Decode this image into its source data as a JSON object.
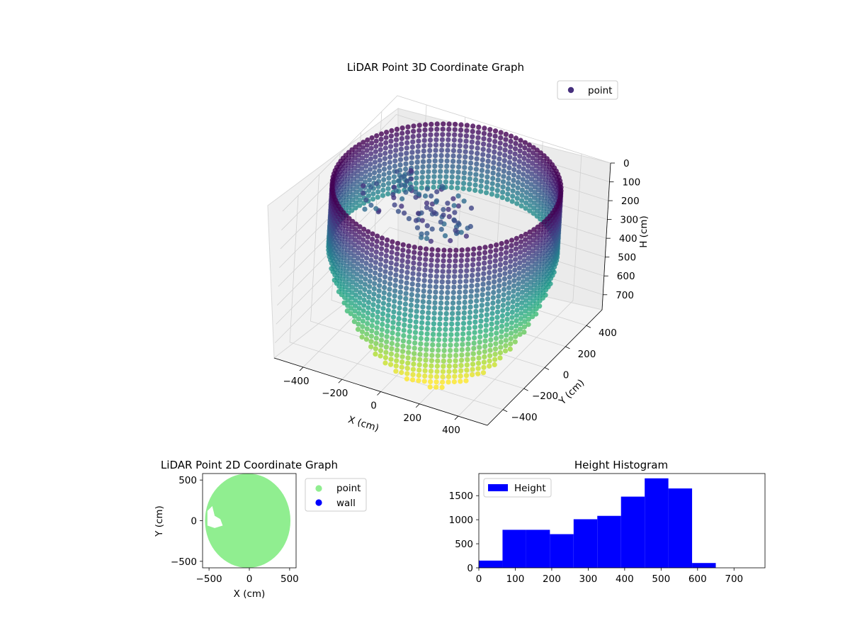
{
  "chart_data": [
    {
      "type": "scatter3d",
      "title": "LiDAR Point 3D Coordinate Graph",
      "xlabel": "X (cm)",
      "ylabel": "Y (cm)",
      "zlabel": "H (cm)",
      "x_ticks": [
        -400,
        -200,
        0,
        200,
        400
      ],
      "y_ticks": [
        -400,
        -200,
        0,
        200,
        400
      ],
      "z_ticks": [
        0,
        100,
        200,
        300,
        400,
        500,
        600,
        700
      ],
      "xlim": [
        -550,
        550
      ],
      "ylim": [
        -550,
        550
      ],
      "zlim": [
        0,
        780
      ],
      "z_inverted": true,
      "colormap": "viridis",
      "legend": {
        "entries": [
          "point"
        ],
        "placement": "top-right"
      },
      "ring_radius": 520,
      "features": "cylindrical wall of points (radius ~520 cm) spanning heights ~0-700 cm, deepest toward -X/-Y; interior cluster of objects near x -300 to 100"
    },
    {
      "type": "scatter",
      "title": "LiDAR Point 2D Coordinate Graph",
      "xlabel": "X (cm)",
      "ylabel": "Y (cm)",
      "x_ticks": [
        -500,
        0,
        500
      ],
      "y_ticks": [
        -500,
        0,
        500
      ],
      "xlim": [
        -580,
        580
      ],
      "ylim": [
        -580,
        580
      ],
      "legend": {
        "entries": [
          "point",
          "wall"
        ],
        "placement": "outside right"
      },
      "series": [
        {
          "name": "point",
          "color": "#90ee90",
          "shape": "filled disc radius ~540 cm with small gaps near (-450, 0)"
        },
        {
          "name": "wall",
          "color": "#0000ff"
        }
      ]
    },
    {
      "type": "bar",
      "title": "Height Histogram",
      "legend": {
        "entries": [
          "Height"
        ],
        "placement": "top-left"
      },
      "color": "#0000ff",
      "x_ticks": [
        0,
        100,
        200,
        300,
        400,
        500,
        600,
        700
      ],
      "y_ticks": [
        0,
        500,
        1000,
        1500
      ],
      "xlim": [
        0,
        785
      ],
      "ylim": [
        0,
        1960
      ],
      "bins": [
        {
          "start": 0,
          "end": 65,
          "value": 150
        },
        {
          "start": 65,
          "end": 130,
          "value": 790
        },
        {
          "start": 130,
          "end": 195,
          "value": 790
        },
        {
          "start": 195,
          "end": 260,
          "value": 700
        },
        {
          "start": 260,
          "end": 325,
          "value": 1010
        },
        {
          "start": 325,
          "end": 390,
          "value": 1080
        },
        {
          "start": 390,
          "end": 455,
          "value": 1480
        },
        {
          "start": 455,
          "end": 520,
          "value": 1860
        },
        {
          "start": 520,
          "end": 585,
          "value": 1650
        },
        {
          "start": 585,
          "end": 650,
          "value": 100
        }
      ]
    }
  ]
}
